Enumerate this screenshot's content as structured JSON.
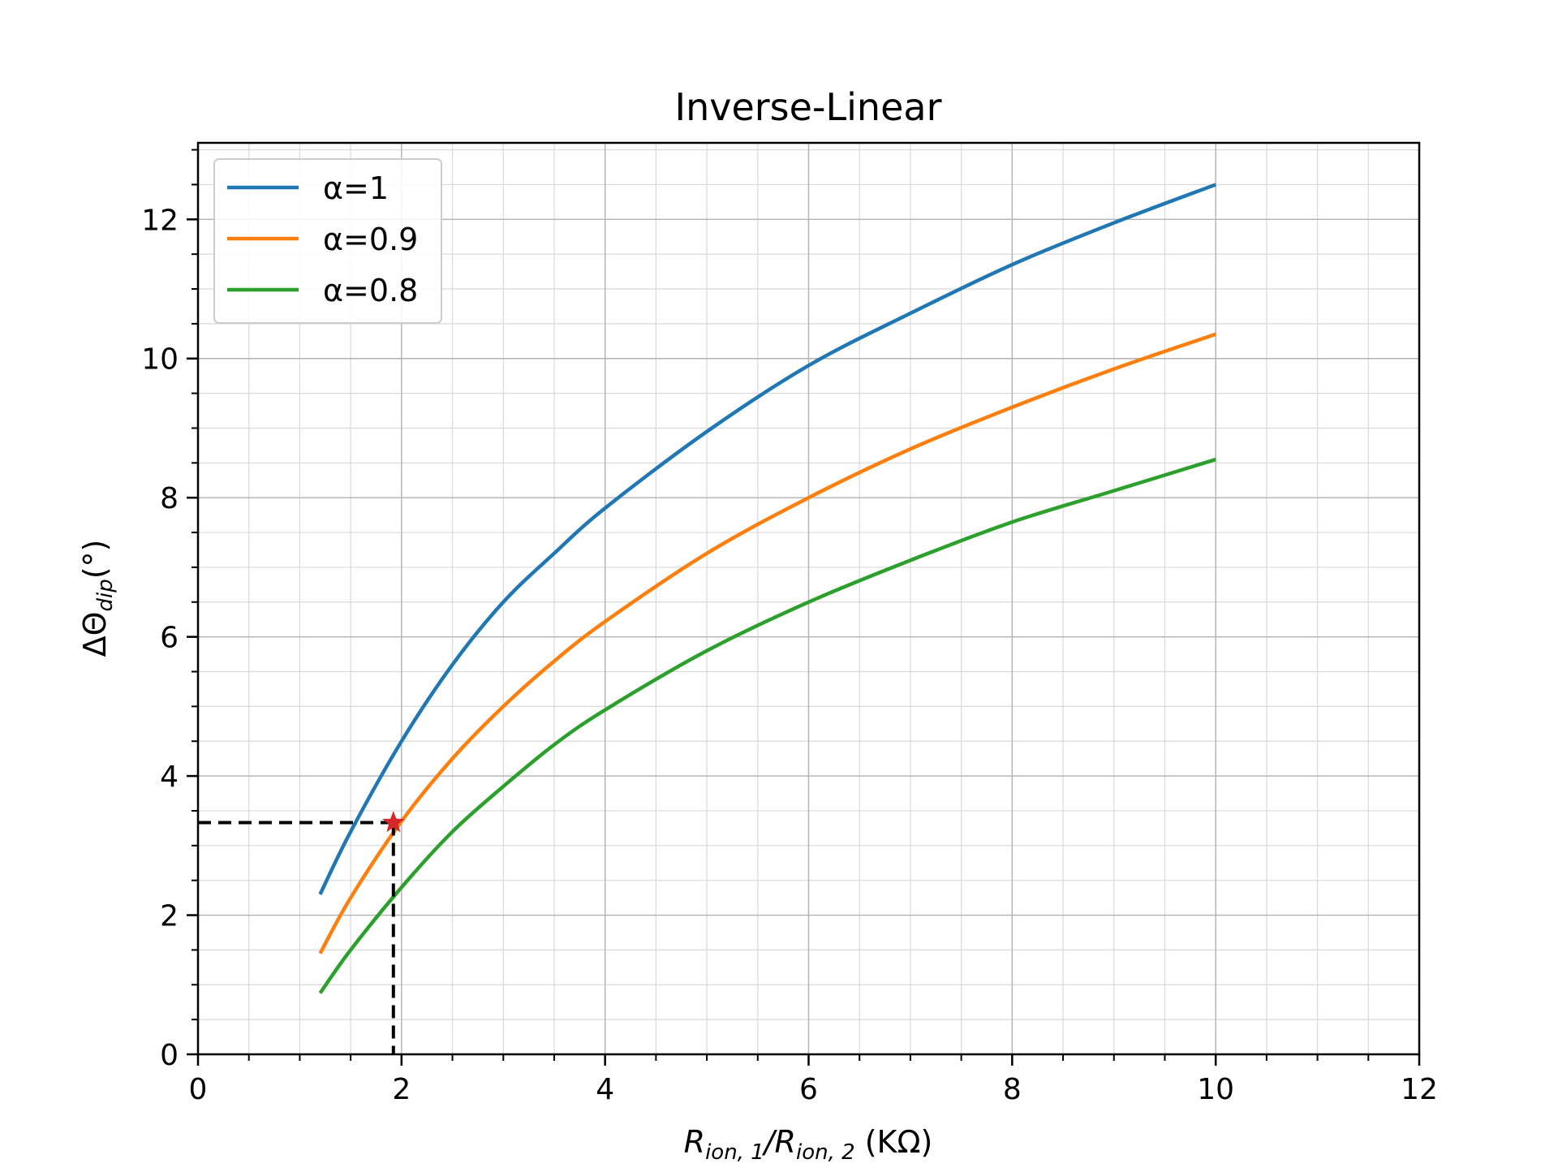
{
  "chart_data": {
    "type": "line",
    "title": "Inverse-Linear",
    "xlabel": {
      "main": "R",
      "sub1": "ion, 1",
      "slash": "/R",
      "sub2": "ion, 2",
      "unit": " (KΩ)"
    },
    "ylabel": {
      "main": "ΔΘ",
      "sub": "dip",
      "unit": "(°)"
    },
    "xlim": [
      0,
      12
    ],
    "ylim": [
      0,
      13.1
    ],
    "xticks": [
      0,
      2,
      4,
      6,
      8,
      10,
      12
    ],
    "yticks": [
      0,
      2,
      4,
      6,
      8,
      10,
      12
    ],
    "minor_x_step": 0.5,
    "minor_y_step": 0.5,
    "grid": true,
    "legend_position": "top-left",
    "x": [
      1.2,
      1.5,
      2,
      2.5,
      3,
      3.5,
      4,
      5,
      6,
      7,
      8,
      9,
      10
    ],
    "series": [
      {
        "name": "α=1",
        "color": "#1f77b4",
        "values": [
          2.3,
          3.2,
          4.5,
          5.6,
          6.5,
          7.2,
          7.85,
          8.95,
          9.9,
          10.65,
          11.35,
          11.95,
          12.5
        ]
      },
      {
        "name": "α=0.9",
        "color": "#ff7f0e",
        "values": [
          1.45,
          2.25,
          3.35,
          4.25,
          5.0,
          5.65,
          6.22,
          7.2,
          8.0,
          8.7,
          9.3,
          9.85,
          10.35
        ]
      },
      {
        "name": "α=0.8",
        "color": "#2ca02c",
        "values": [
          0.88,
          1.5,
          2.4,
          3.2,
          3.85,
          4.45,
          4.95,
          5.8,
          6.5,
          7.1,
          7.65,
          8.1,
          8.55
        ]
      }
    ],
    "marker_point": {
      "x": 1.92,
      "y": 3.33,
      "color": "#d62728",
      "symbol": "star"
    },
    "guide_color": "#000000"
  }
}
